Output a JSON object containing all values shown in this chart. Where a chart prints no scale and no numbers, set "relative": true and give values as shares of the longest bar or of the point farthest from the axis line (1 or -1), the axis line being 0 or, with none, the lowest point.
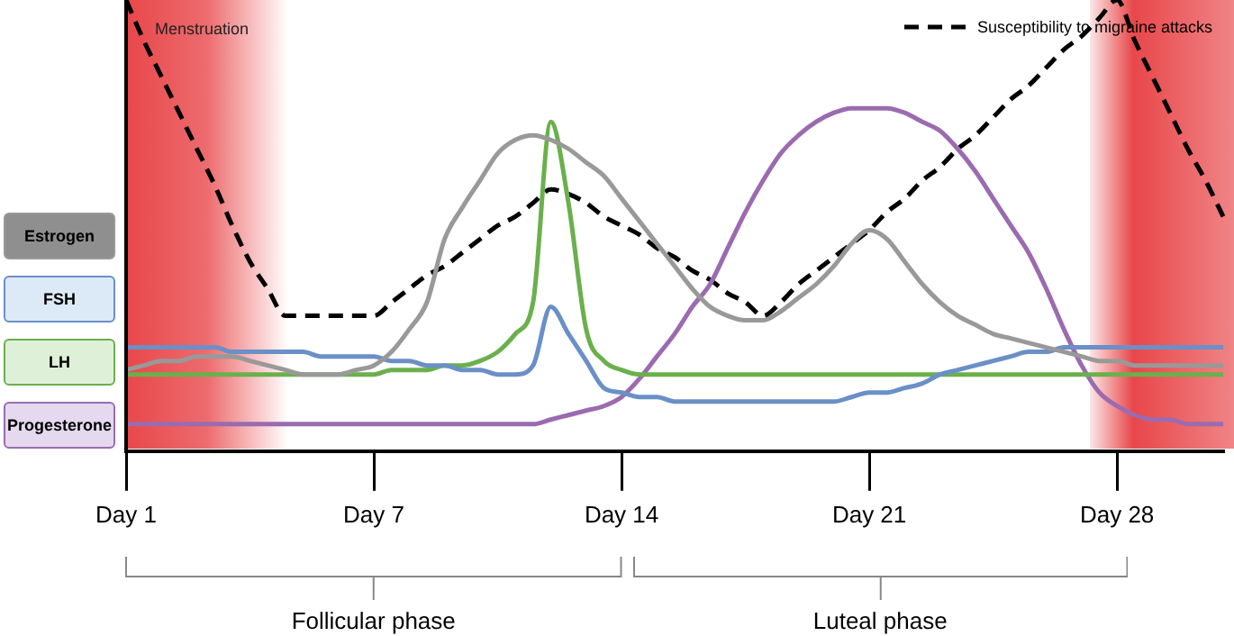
{
  "chart_data": {
    "type": "line",
    "relative": true,
    "legend": "top right",
    "categories": [
      "Day 1",
      null,
      null,
      null,
      null,
      null,
      null,
      null,
      null,
      null,
      null,
      null,
      null,
      null,
      "Day 7",
      null,
      null,
      null,
      null,
      null,
      null,
      null,
      null,
      null,
      null,
      null,
      null,
      null,
      "Day 14",
      null,
      null,
      null,
      null,
      null,
      null,
      null,
      null,
      null,
      null,
      null,
      null,
      null,
      "Day 21",
      null,
      null,
      null,
      null,
      null,
      null,
      null,
      null,
      null,
      null,
      null,
      null,
      null,
      "Day 28",
      null,
      null,
      null,
      null,
      null,
      null
    ],
    "annotations": [
      "Menstruation",
      "Follicular phase",
      "Luteal phase"
    ],
    "series": [
      {
        "name": "Estrogen",
        "color": "#999999",
        "values": [
          0.18,
          0.19,
          0.2,
          0.2,
          0.21,
          0.21,
          0.21,
          0.2,
          0.19,
          0.18,
          0.17,
          0.17,
          0.17,
          0.18,
          0.19,
          0.22,
          0.27,
          0.33,
          0.47,
          0.54,
          0.6,
          0.66,
          0.69,
          0.7,
          0.69,
          0.67,
          0.64,
          0.61,
          0.56,
          0.51,
          0.46,
          0.41,
          0.36,
          0.32,
          0.3,
          0.29,
          0.29,
          0.31,
          0.34,
          0.37,
          0.41,
          0.46,
          0.49,
          0.47,
          0.42,
          0.37,
          0.33,
          0.3,
          0.28,
          0.26,
          0.25,
          0.24,
          0.23,
          0.22,
          0.21,
          0.2,
          0.2,
          0.19,
          0.19,
          0.19,
          0.19,
          0.19,
          0.19
        ]
      },
      {
        "name": "FSH",
        "color": "#6b8fc7",
        "values": [
          0.23,
          0.23,
          0.23,
          0.23,
          0.23,
          0.23,
          0.22,
          0.22,
          0.22,
          0.22,
          0.22,
          0.21,
          0.21,
          0.21,
          0.21,
          0.2,
          0.2,
          0.19,
          0.19,
          0.18,
          0.18,
          0.17,
          0.17,
          0.19,
          0.32,
          0.26,
          0.2,
          0.14,
          0.13,
          0.12,
          0.12,
          0.11,
          0.11,
          0.11,
          0.11,
          0.11,
          0.11,
          0.11,
          0.11,
          0.11,
          0.11,
          0.12,
          0.13,
          0.13,
          0.14,
          0.15,
          0.17,
          0.18,
          0.19,
          0.2,
          0.21,
          0.22,
          0.22,
          0.23,
          0.23,
          0.23,
          0.23,
          0.23,
          0.23,
          0.23,
          0.23,
          0.23,
          0.23
        ]
      },
      {
        "name": "LH",
        "color": "#6ab04c",
        "values": [
          0.17,
          0.17,
          0.17,
          0.17,
          0.17,
          0.17,
          0.17,
          0.17,
          0.17,
          0.17,
          0.17,
          0.17,
          0.17,
          0.17,
          0.17,
          0.18,
          0.18,
          0.18,
          0.19,
          0.19,
          0.2,
          0.22,
          0.26,
          0.33,
          0.73,
          0.55,
          0.27,
          0.2,
          0.18,
          0.17,
          0.17,
          0.17,
          0.17,
          0.17,
          0.17,
          0.17,
          0.17,
          0.17,
          0.17,
          0.17,
          0.17,
          0.17,
          0.17,
          0.17,
          0.17,
          0.17,
          0.17,
          0.17,
          0.17,
          0.17,
          0.17,
          0.17,
          0.17,
          0.17,
          0.17,
          0.17,
          0.17,
          0.17,
          0.17,
          0.17,
          0.17,
          0.17,
          0.17
        ]
      },
      {
        "name": "Progesterone",
        "color": "#9b6bb0",
        "values": [
          0.06,
          0.06,
          0.06,
          0.06,
          0.06,
          0.06,
          0.06,
          0.06,
          0.06,
          0.06,
          0.06,
          0.06,
          0.06,
          0.06,
          0.06,
          0.06,
          0.06,
          0.06,
          0.06,
          0.06,
          0.06,
          0.06,
          0.06,
          0.06,
          0.07,
          0.08,
          0.09,
          0.1,
          0.12,
          0.16,
          0.21,
          0.26,
          0.32,
          0.37,
          0.45,
          0.53,
          0.6,
          0.66,
          0.7,
          0.73,
          0.75,
          0.76,
          0.76,
          0.76,
          0.75,
          0.73,
          0.71,
          0.67,
          0.62,
          0.56,
          0.5,
          0.44,
          0.36,
          0.27,
          0.19,
          0.13,
          0.1,
          0.08,
          0.07,
          0.07,
          0.06,
          0.06,
          0.06
        ]
      },
      {
        "name": "Susceptibility to migraine attacks",
        "color": "#000000",
        "line_style": "dashed",
        "values": [
          1.0,
          0.91,
          0.83,
          0.75,
          0.67,
          0.59,
          0.5,
          0.42,
          0.36,
          0.3,
          0.3,
          0.3,
          0.3,
          0.3,
          0.3,
          0.33,
          0.36,
          0.39,
          0.41,
          0.44,
          0.47,
          0.5,
          0.52,
          0.55,
          0.58,
          0.57,
          0.55,
          0.52,
          0.5,
          0.48,
          0.45,
          0.43,
          0.4,
          0.38,
          0.35,
          0.33,
          0.3,
          0.33,
          0.37,
          0.4,
          0.43,
          0.46,
          0.49,
          0.53,
          0.56,
          0.6,
          0.63,
          0.67,
          0.7,
          0.74,
          0.78,
          0.81,
          0.85,
          0.89,
          0.92,
          0.96,
          1.0,
          0.91,
          0.83,
          0.75,
          0.67,
          0.6,
          0.52
        ]
      }
    ]
  }
}
